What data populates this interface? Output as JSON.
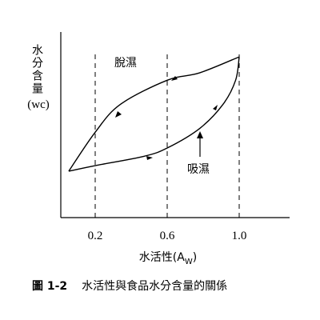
{
  "chart_data": {
    "type": "line",
    "ylabel": [
      "水分含量",
      "(wc)"
    ],
    "xlabel": [
      "水活性(A",
      "W",
      ")"
    ],
    "caption": {
      "number": "圖 1-2",
      "text": "水活性與食品水分含量的關係"
    },
    "xlim": [
      0,
      1.28
    ],
    "ylim": [
      0,
      1
    ],
    "xticks": [
      0.2,
      0.6,
      {
        "value": 1,
        "label": "1.0"
      }
    ],
    "grid": true,
    "grid_style": "dashed",
    "color": "#000000",
    "series": [
      {
        "name": "脫濕",
        "color": "#000000",
        "x": [
          0.053,
          0.2,
          0.34,
          0.6,
          0.78,
          1.0
        ],
        "values": [
          0.25,
          0.46,
          0.61,
          0.74,
          0.78,
          0.866
        ]
      },
      {
        "name": "吸濕",
        "color": "#000000",
        "x": [
          0.053,
          0.2,
          0.47,
          0.6,
          0.78,
          0.91,
          0.98,
          1.0
        ],
        "values": [
          0.25,
          0.28,
          0.33,
          0.375,
          0.48,
          0.61,
          0.74,
          0.866
        ]
      }
    ]
  }
}
